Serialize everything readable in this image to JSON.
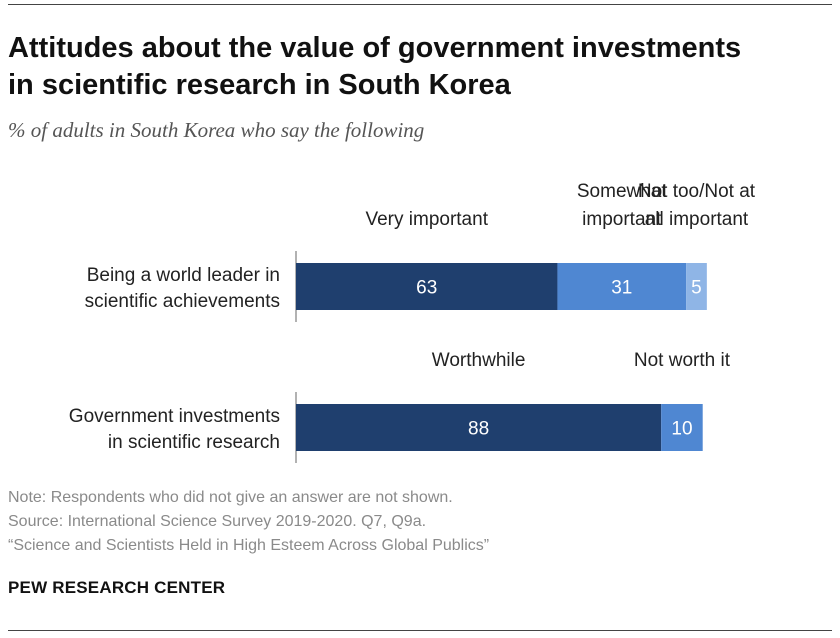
{
  "title": "Attitudes about the value of government investments\nin scientific research in South Korea",
  "subtitle": "% of adults in South Korea who say the following",
  "chart_data": {
    "type": "bar",
    "orientation": "horizontal",
    "stacked": true,
    "xlim": [
      0,
      100
    ],
    "colors": [
      "#1f3f6e",
      "#4f87d2",
      "#8fb5e6"
    ],
    "rows": [
      {
        "label": [
          "Being a world leader in",
          "scientific achievements"
        ],
        "segments": [
          {
            "name": "Very important",
            "header": [
              "Very important"
            ],
            "value": 63
          },
          {
            "name": "Somewhat important",
            "header": [
              "Somewhat",
              "important"
            ],
            "value": 31
          },
          {
            "name": "Not too/Not at all important",
            "header": [
              "Not too/Not at",
              "all important"
            ],
            "value": 5
          }
        ]
      },
      {
        "label": [
          "Government investments",
          "in scientific research"
        ],
        "segments": [
          {
            "name": "Worthwhile",
            "header": [
              "Worthwhile"
            ],
            "value": 88
          },
          {
            "name": "Not worth it",
            "header": [
              "Not worth it"
            ],
            "value": 10
          }
        ]
      }
    ]
  },
  "notes": [
    "Note: Respondents who did not give an answer are not shown.",
    "Source: International Science Survey 2019-2020. Q7, Q9a.",
    "“Science and Scientists Held in High Esteem Across Global Publics”"
  ],
  "credit": "PEW RESEARCH CENTER"
}
